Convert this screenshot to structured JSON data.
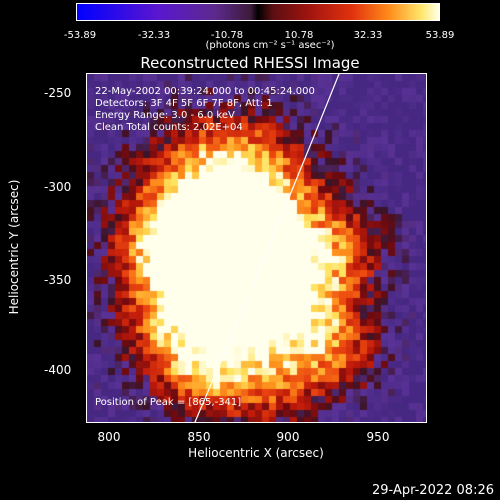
{
  "colorbar": {
    "ticks": [
      "-53.89",
      "-32.33",
      "-10.78",
      "10.78",
      "32.33",
      "53.89"
    ],
    "units": "(photons cm⁻² s⁻¹ asec⁻²)"
  },
  "title": "Reconstructed RHESSI Image",
  "annotations": {
    "time": "22-May-2002 00:39:24.000 to 00:45:24.000",
    "detectors": "Detectors: 3F 4F 5F 6F 7F 8F, Att: 1",
    "energy": "Energy Range: 3.0 - 6.0 keV",
    "method": "Clean     Total counts: 2.02E+04",
    "peak": "Position of Peak = [865,-341]"
  },
  "axes": {
    "xlabel": "Heliocentric X (arcsec)",
    "ylabel": "Heliocentric Y (arcsec)",
    "xticks": [
      "800",
      "850",
      "900",
      "950"
    ],
    "yticks": [
      "-250",
      "-300",
      "-350",
      "-400"
    ],
    "xlim": [
      781,
      975
    ],
    "ylim": [
      -430,
      -240
    ]
  },
  "peak": {
    "x": 865,
    "y": -341
  },
  "footer_date": "29-Apr-2022 08:26"
}
